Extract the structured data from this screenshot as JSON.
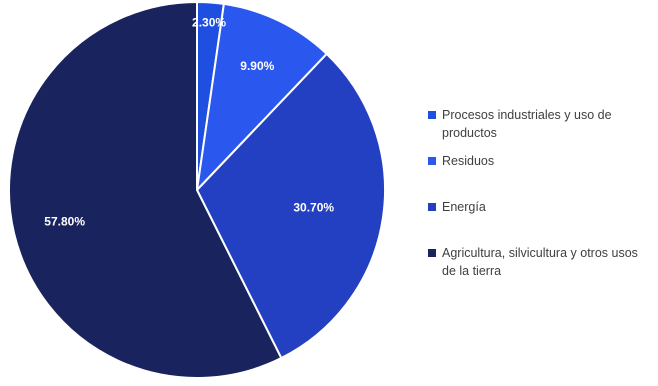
{
  "chart_data": {
    "type": "pie",
    "categories": [
      "Procesos industriales y uso de productos",
      "Residuos",
      "Energía",
      "Agricultura, silvicultura y otros usos de la tierra"
    ],
    "values": [
      2.3,
      9.9,
      30.7,
      57.8
    ],
    "data_labels": [
      "2.30%",
      "9.90%",
      "30.70%",
      "57.80%"
    ],
    "colors": [
      "#1f4fe0",
      "#2a58ee",
      "#2440c2",
      "#19245f"
    ],
    "legend_position": "right",
    "start_angle": "12 o'clock",
    "direction": "clockwise"
  }
}
